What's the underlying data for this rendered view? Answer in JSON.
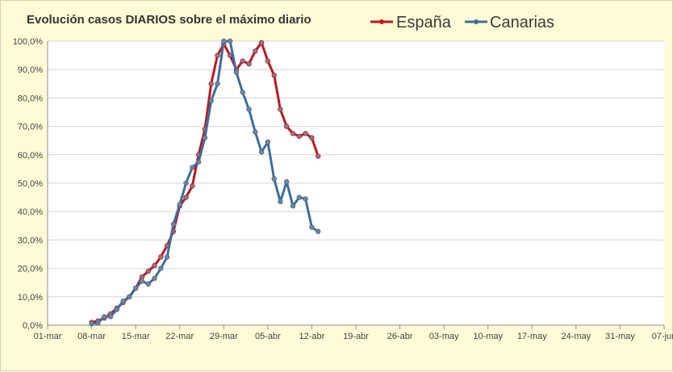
{
  "chart_data": {
    "type": "line",
    "title": "Evolución casos DIARIOS sobre el máximo diario",
    "xlabel": "",
    "ylabel": "",
    "x_ticks": [
      "01-mar",
      "08-mar",
      "15-mar",
      "22-mar",
      "29-mar",
      "05-abr",
      "12-abr",
      "19-abr",
      "26-abr",
      "03-may",
      "10-may",
      "17-may",
      "24-may",
      "31-may",
      "07-jun"
    ],
    "y_ticks": [
      "0,0%",
      "10,0%",
      "20,0%",
      "30,0%",
      "40,0%",
      "50,0%",
      "60,0%",
      "70,0%",
      "80,0%",
      "90,0%",
      "100,0%"
    ],
    "xlim": [
      "2020-03-01",
      "2020-06-07"
    ],
    "ylim": [
      0,
      100
    ],
    "grid": true,
    "legend": "top",
    "series": [
      {
        "name": "España",
        "color": "#c0161e",
        "x": [
          "2020-03-08",
          "2020-03-09",
          "2020-03-10",
          "2020-03-11",
          "2020-03-12",
          "2020-03-13",
          "2020-03-14",
          "2020-03-15",
          "2020-03-16",
          "2020-03-17",
          "2020-03-18",
          "2020-03-19",
          "2020-03-20",
          "2020-03-21",
          "2020-03-22",
          "2020-03-23",
          "2020-03-24",
          "2020-03-25",
          "2020-03-26",
          "2020-03-27",
          "2020-03-28",
          "2020-03-29",
          "2020-03-30",
          "2020-03-31",
          "2020-04-01",
          "2020-04-02",
          "2020-04-03",
          "2020-04-04",
          "2020-04-05",
          "2020-04-06",
          "2020-04-07",
          "2020-04-08",
          "2020-04-09",
          "2020-04-10",
          "2020-04-11",
          "2020-04-12",
          "2020-04-13"
        ],
        "values": [
          1,
          1.5,
          2.5,
          4,
          6,
          8,
          10,
          13,
          17,
          19,
          21,
          24,
          28,
          33,
          42,
          45,
          49,
          60,
          69,
          85,
          95,
          99,
          95,
          90,
          93,
          92,
          96.5,
          99.5,
          93,
          88,
          76,
          70,
          67.5,
          66.5,
          67.5,
          66,
          59.5
        ]
      },
      {
        "name": "Canarias",
        "color": "#3b6f9c",
        "x": [
          "2020-03-08",
          "2020-03-09",
          "2020-03-10",
          "2020-03-11",
          "2020-03-12",
          "2020-03-13",
          "2020-03-14",
          "2020-03-15",
          "2020-03-16",
          "2020-03-17",
          "2020-03-18",
          "2020-03-19",
          "2020-03-20",
          "2020-03-21",
          "2020-03-22",
          "2020-03-23",
          "2020-03-24",
          "2020-03-25",
          "2020-03-26",
          "2020-03-27",
          "2020-03-28",
          "2020-03-29",
          "2020-03-30",
          "2020-03-31",
          "2020-04-01",
          "2020-04-02",
          "2020-04-03",
          "2020-04-04",
          "2020-04-05",
          "2020-04-06",
          "2020-04-07",
          "2020-04-08",
          "2020-04-09",
          "2020-04-10",
          "2020-04-11",
          "2020-04-12",
          "2020-04-13"
        ],
        "values": [
          0.5,
          0.8,
          3,
          3,
          5.5,
          8.5,
          10,
          13,
          15.5,
          14.5,
          16.5,
          20,
          24,
          35.5,
          42.5,
          50,
          55.5,
          57.5,
          66,
          79,
          85,
          100,
          100,
          89,
          82,
          76,
          68,
          61,
          64.5,
          51.5,
          43.5,
          50.5,
          42,
          45,
          44.5,
          34.5,
          33
        ]
      }
    ]
  }
}
